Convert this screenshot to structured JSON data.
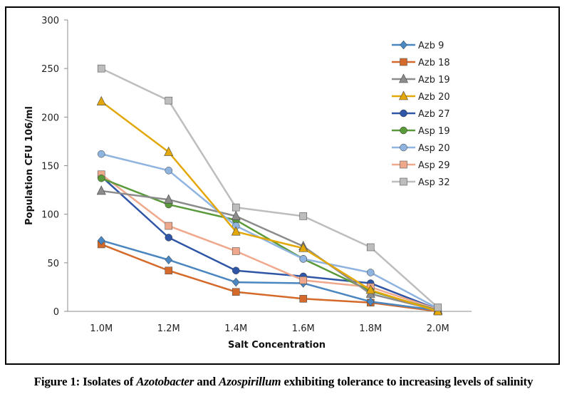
{
  "chart_data": {
    "type": "line",
    "title": "",
    "xlabel": "Salt Concentration",
    "ylabel": "Population CFU 106/ml",
    "categories": [
      "1.0M",
      "1.2M",
      "1.4M",
      "1.6M",
      "1.8M",
      "2.0M"
    ],
    "ylim": [
      0,
      300
    ],
    "yticks": [
      0,
      50,
      100,
      150,
      200,
      250,
      300
    ],
    "grid": false,
    "legend_position": "top-right",
    "series": [
      {
        "name": "Azb 9",
        "color": "#4a86c0",
        "marker": "diamond",
        "values": [
          73,
          53,
          30,
          29,
          10,
          1
        ]
      },
      {
        "name": "Azb 18",
        "color": "#d4692a",
        "marker": "square",
        "values": [
          69,
          42,
          20,
          13,
          9,
          0
        ]
      },
      {
        "name": "Azb 19",
        "color": "#8c8c8c",
        "marker": "triangle",
        "values": [
          124,
          115,
          98,
          67,
          18,
          1
        ]
      },
      {
        "name": "Azb 20",
        "color": "#e3a808",
        "marker": "triangle",
        "values": [
          216,
          164,
          82,
          65,
          22,
          0
        ]
      },
      {
        "name": "Azb 27",
        "color": "#2f56a6",
        "marker": "circle",
        "values": [
          139,
          76,
          42,
          36,
          29,
          2
        ]
      },
      {
        "name": "Asp 19",
        "color": "#5a9a3a",
        "marker": "circle",
        "values": [
          137,
          110,
          94,
          54,
          21,
          1
        ]
      },
      {
        "name": "Asp 20",
        "color": "#8fb4e0",
        "marker": "circle",
        "values": [
          162,
          145,
          88,
          54,
          40,
          3
        ]
      },
      {
        "name": "Asp 29",
        "color": "#f0a88c",
        "marker": "square",
        "values": [
          141,
          88,
          62,
          32,
          25,
          2
        ]
      },
      {
        "name": "Asp 32",
        "color": "#bdbdbd",
        "marker": "square",
        "values": [
          250,
          217,
          107,
          98,
          66,
          4
        ]
      }
    ]
  },
  "caption": {
    "prefix": "Figure 1: Isolates of ",
    "genus1": "Azotobacter",
    "middle": " and ",
    "genus2": "Azospirillum",
    "suffix": " exhibiting tolerance to increasing levels of salinity"
  }
}
